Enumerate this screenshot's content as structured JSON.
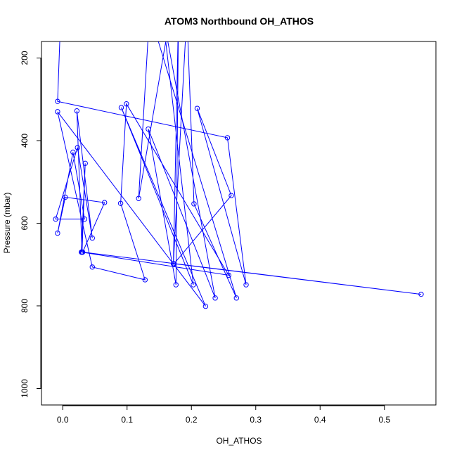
{
  "chart_data": {
    "type": "line",
    "title": "ATOM3 Northbound OH_ATHOS",
    "xlabel": "OH_ATHOS",
    "ylabel": "Pressure (mbar)",
    "xlim": [
      -0.033,
      0.58
    ],
    "ylim": [
      1040,
      160
    ],
    "y_reversed": true,
    "x_ticks": [
      0.0,
      0.1,
      0.2,
      0.3,
      0.4,
      0.5
    ],
    "x_tick_labels": [
      "0.0",
      "0.1",
      "0.2",
      "0.3",
      "0.4",
      "0.5"
    ],
    "y_ticks": [
      200,
      400,
      600,
      800,
      1000
    ],
    "y_tick_labels": [
      "200",
      "400",
      "600",
      "800",
      "1000"
    ],
    "grid": false,
    "legend": "none",
    "colors": {
      "series": "#0000ff",
      "axis": "#000000"
    },
    "series": [
      {
        "marker": "open-circle",
        "points": [
          {
            "x": -0.003,
            "y": 90
          },
          {
            "x": -0.008,
            "y": 305
          },
          {
            "x": 0.256,
            "y": 393
          },
          {
            "x": 0.285,
            "y": 749
          },
          {
            "x": 0.209,
            "y": 322
          },
          {
            "x": 0.262,
            "y": 533
          },
          {
            "x": 0.173,
            "y": 698
          },
          {
            "x": 0.557,
            "y": 772
          },
          {
            "x": 0.031,
            "y": 670
          },
          {
            "x": 0.065,
            "y": 550
          },
          {
            "x": 0.004,
            "y": 537
          },
          {
            "x": -0.008,
            "y": 624
          },
          {
            "x": 0.016,
            "y": 428
          },
          {
            "x": 0.034,
            "y": 590
          },
          {
            "x": -0.011,
            "y": 590
          },
          {
            "x": 0.023,
            "y": 417
          },
          {
            "x": 0.046,
            "y": 636
          },
          {
            "x": 0.022,
            "y": 328
          },
          {
            "x": 0.03,
            "y": 670
          },
          {
            "x": 0.035,
            "y": 455
          },
          {
            "x": 0.029,
            "y": 670
          },
          {
            "x": 0.258,
            "y": 726
          },
          {
            "x": 0.099,
            "y": 311
          },
          {
            "x": 0.09,
            "y": 552
          },
          {
            "x": 0.128,
            "y": 737
          },
          {
            "x": 0.046,
            "y": 706
          },
          {
            "x": -0.008,
            "y": 330
          },
          {
            "x": 0.222,
            "y": 801
          },
          {
            "x": 0.091,
            "y": 320
          },
          {
            "x": 0.203,
            "y": 749
          },
          {
            "x": 0.155,
            "y": 90
          },
          {
            "x": 0.237,
            "y": 781
          },
          {
            "x": 0.133,
            "y": 372
          },
          {
            "x": 0.176,
            "y": 749
          },
          {
            "x": 0.18,
            "y": 90
          },
          {
            "x": 0.172,
            "y": 698
          },
          {
            "x": 0.193,
            "y": 90
          },
          {
            "x": 0.204,
            "y": 553
          },
          {
            "x": 0.27,
            "y": 781
          },
          {
            "x": 0.135,
            "y": 90
          },
          {
            "x": 0.118,
            "y": 540
          },
          {
            "x": 0.168,
            "y": 90
          },
          {
            "x": 0.167,
            "y": 90
          }
        ]
      }
    ]
  }
}
